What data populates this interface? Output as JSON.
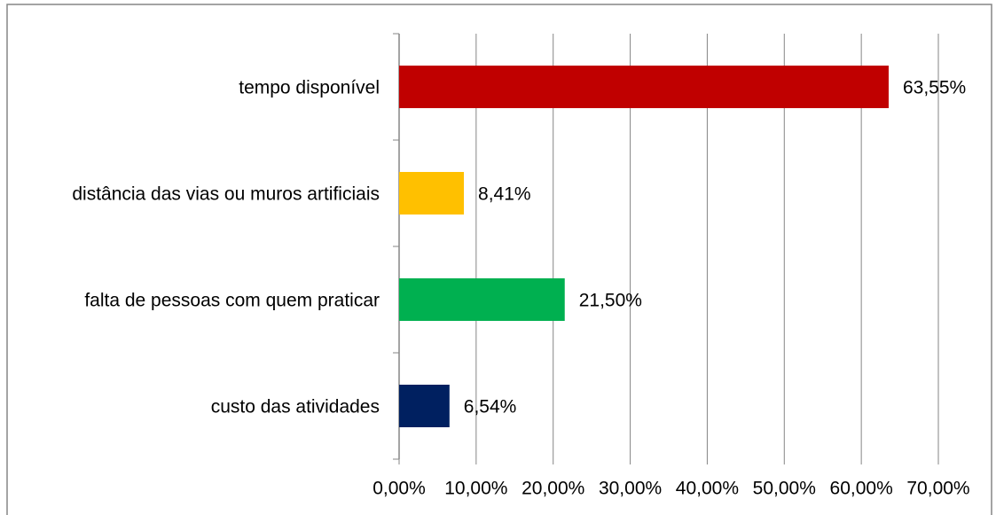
{
  "chart_data": {
    "type": "barh",
    "categories": [
      "tempo disponível",
      "distância das vias ou muros artificiais",
      "falta de pessoas com quem praticar",
      "custo das atividades"
    ],
    "values": [
      63.55,
      8.41,
      21.5,
      6.54
    ],
    "value_labels": [
      "63,55%",
      "8,41%",
      "21,50%",
      "6,54%"
    ],
    "colors": [
      "#c00000",
      "#ffc000",
      "#00b050",
      "#002060"
    ],
    "xlim": [
      0,
      70
    ],
    "xticks": [
      {
        "value": 0,
        "label": "0,00%"
      },
      {
        "value": 10,
        "label": "10,00%"
      },
      {
        "value": 20,
        "label": "20,00%"
      },
      {
        "value": 30,
        "label": "30,00%"
      },
      {
        "value": 40,
        "label": "40,00%"
      },
      {
        "value": 50,
        "label": "50,00%"
      },
      {
        "value": 60,
        "label": "60,00%"
      },
      {
        "value": 70,
        "label": "70,00%"
      }
    ],
    "grid": true
  }
}
